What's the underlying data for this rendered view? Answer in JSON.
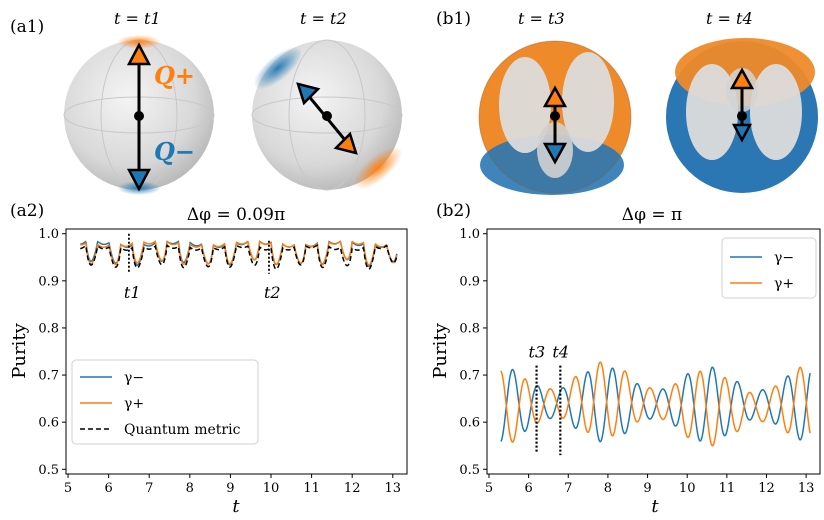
{
  "panel_labels": {
    "a1": "(a1)",
    "b1": "(b1)",
    "a2": "(a2)",
    "b2": "(b2)"
  },
  "spheres": {
    "a1": {
      "title": "t = t1",
      "label_top": "Q+",
      "label_bottom": "Q−",
      "top_color": "#ff7f0e",
      "bottom_color": "#1f77b4"
    },
    "a2": {
      "title": "t = t2"
    },
    "b1": {
      "title": "t = t3"
    },
    "b2": {
      "title": "t = t4"
    }
  },
  "chart_data": [
    {
      "type": "line",
      "title": "Δφ = 0.09π",
      "xlabel": "t",
      "ylabel": "Purity",
      "xlim": [
        4.95,
        13.35
      ],
      "ylim": [
        0.49,
        1.01
      ],
      "xticks": [
        "5",
        "6",
        "7",
        "8",
        "9",
        "10",
        "11",
        "12",
        "13"
      ],
      "yticks": [
        "0.5",
        "0.6",
        "0.7",
        "0.8",
        "0.9",
        "1.0"
      ],
      "legend_position": "lower-left",
      "series": [
        {
          "name": "γ−",
          "color": "#1f77b4",
          "style": "solid"
        },
        {
          "name": "γ+",
          "color": "#ff7f0e",
          "style": "solid"
        },
        {
          "name": "Quantum metric",
          "color": "#000000",
          "style": "dashed"
        }
      ],
      "x_range": [
        5.3,
        13.1
      ],
      "annotations": [
        {
          "label": "t1",
          "x": 6.5,
          "y_from": 1.0,
          "y_to": 0.915
        },
        {
          "label": "t2",
          "x": 9.95,
          "y_from": 0.985,
          "y_to": 0.915
        }
      ]
    },
    {
      "type": "line",
      "title": "Δφ = π",
      "xlabel": "t",
      "ylabel": "Purity",
      "xlim": [
        4.95,
        13.35
      ],
      "ylim": [
        0.49,
        1.01
      ],
      "xticks": [
        "5",
        "6",
        "7",
        "8",
        "9",
        "10",
        "11",
        "12",
        "13"
      ],
      "yticks": [
        "0.5",
        "0.6",
        "0.7",
        "0.8",
        "0.9",
        "1.0"
      ],
      "legend_position": "upper-right",
      "series": [
        {
          "name": "γ−",
          "color": "#1f77b4",
          "style": "solid"
        },
        {
          "name": "γ+",
          "color": "#ff7f0e",
          "style": "solid"
        }
      ],
      "x_range": [
        5.3,
        13.1
      ],
      "annotations": [
        {
          "label": "t3",
          "x": 6.2,
          "y_from": 0.72,
          "y_to": 0.535
        },
        {
          "label": "t4",
          "x": 6.8,
          "y_from": 0.72,
          "y_to": 0.53
        }
      ]
    }
  ]
}
